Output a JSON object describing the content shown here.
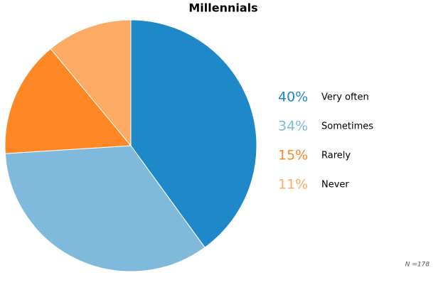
{
  "chart_data": {
    "type": "pie",
    "title": "Millennials",
    "categories": [
      "Very often",
      "Sometimes",
      "Rarely",
      "Never"
    ],
    "values": [
      40,
      34,
      15,
      11
    ],
    "value_labels": [
      "40%",
      "34%",
      "15%",
      "11%"
    ],
    "colors": [
      "#1f88c9",
      "#7fb9db",
      "#fd8724",
      "#fdaa65"
    ],
    "annotation": "N =178"
  }
}
